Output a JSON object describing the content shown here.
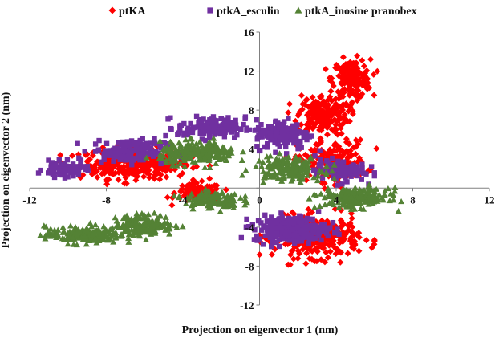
{
  "chart_data": {
    "type": "scatter",
    "title": "",
    "xlabel": "Projection on eigenvector 1 (nm)",
    "ylabel": "Projection on eigenvector 2 (nm)",
    "xlim": [
      -12,
      12
    ],
    "ylim": [
      -12,
      16
    ],
    "x_ticks": [
      -12,
      -8,
      -4,
      0,
      4,
      8,
      12
    ],
    "y_ticks": [
      -12,
      -8,
      -4,
      0,
      4,
      8,
      12,
      16
    ],
    "grid": false,
    "legend_position": "top",
    "series": [
      {
        "name": "ptKA",
        "color": "#ff0000",
        "marker": "diamond",
        "clusters": [
          {
            "cx": -6.5,
            "cy": 2.5,
            "sx": 2.6,
            "sy": 1.4,
            "n": 340
          },
          {
            "cx": -3.2,
            "cy": -0.5,
            "sx": 1.1,
            "sy": 0.9,
            "n": 120
          },
          {
            "cx": 4.8,
            "cy": 11.2,
            "sx": 0.9,
            "sy": 1.8,
            "n": 170
          },
          {
            "cx": 3.3,
            "cy": 7.5,
            "sx": 1.2,
            "sy": 1.9,
            "n": 190
          },
          {
            "cx": 3.8,
            "cy": 2.8,
            "sx": 1.6,
            "sy": 1.9,
            "n": 190
          },
          {
            "cx": 3.0,
            "cy": -5.0,
            "sx": 2.0,
            "sy": 1.9,
            "n": 320
          }
        ]
      },
      {
        "name": "ptkA_esculin",
        "color": "#7030a0",
        "marker": "square",
        "clusters": [
          {
            "cx": -10.2,
            "cy": 1.9,
            "sx": 1.0,
            "sy": 0.7,
            "n": 80
          },
          {
            "cx": -6.8,
            "cy": 3.8,
            "sx": 1.8,
            "sy": 1.1,
            "n": 130
          },
          {
            "cx": -2.5,
            "cy": 6.2,
            "sx": 1.6,
            "sy": 1.0,
            "n": 120
          },
          {
            "cx": 1.2,
            "cy": 5.5,
            "sx": 1.3,
            "sy": 1.4,
            "n": 160
          },
          {
            "cx": 1.6,
            "cy": -4.2,
            "sx": 1.7,
            "sy": 1.2,
            "n": 280
          },
          {
            "cx": 4.2,
            "cy": 1.8,
            "sx": 1.2,
            "sy": 1.0,
            "n": 100
          }
        ]
      },
      {
        "name": "ptkA_inosine pranobex",
        "color": "#548235",
        "marker": "triangle",
        "clusters": [
          {
            "cx": -9.2,
            "cy": -4.8,
            "sx": 1.8,
            "sy": 0.8,
            "n": 170
          },
          {
            "cx": -6.0,
            "cy": -3.8,
            "sx": 1.4,
            "sy": 1.0,
            "n": 170
          },
          {
            "cx": -2.5,
            "cy": -1.2,
            "sx": 1.3,
            "sy": 0.8,
            "n": 120
          },
          {
            "cx": -3.2,
            "cy": 3.6,
            "sx": 1.8,
            "sy": 1.0,
            "n": 230
          },
          {
            "cx": 1.5,
            "cy": 2.0,
            "sx": 1.6,
            "sy": 1.1,
            "n": 170
          },
          {
            "cx": 5.0,
            "cy": -1.0,
            "sx": 1.6,
            "sy": 0.9,
            "n": 200
          }
        ]
      }
    ]
  }
}
